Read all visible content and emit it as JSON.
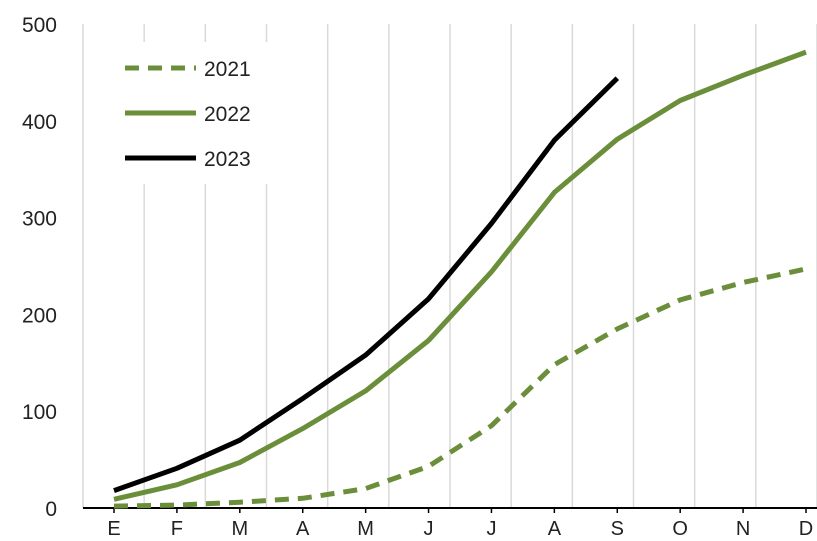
{
  "chart_data": {
    "type": "line",
    "categories": [
      "E",
      "F",
      "M",
      "A",
      "M",
      "J",
      "J",
      "A",
      "S",
      "O",
      "N",
      "D"
    ],
    "ylim": [
      0,
      500
    ],
    "yticks": [
      0,
      100,
      200,
      300,
      400,
      500
    ],
    "ytick_labels": [
      "0",
      "100",
      "200",
      "300",
      "400",
      "500"
    ],
    "grid": "vertical",
    "legend_position": "top-left",
    "series": [
      {
        "name": "2021",
        "color": "#6b8e3a",
        "style": "dashed",
        "values": [
          2,
          3,
          6,
          10,
          20,
          43,
          85,
          148,
          185,
          215,
          233,
          247
        ]
      },
      {
        "name": "2022",
        "color": "#6b8e3a",
        "style": "solid",
        "values": [
          9,
          24,
          47,
          82,
          121,
          173,
          244,
          326,
          381,
          421,
          447,
          471
        ]
      },
      {
        "name": "2023",
        "color": "#000000",
        "style": "solid",
        "values": [
          18,
          41,
          70,
          113,
          158,
          216,
          294,
          380,
          444,
          null,
          null,
          null
        ]
      }
    ]
  }
}
